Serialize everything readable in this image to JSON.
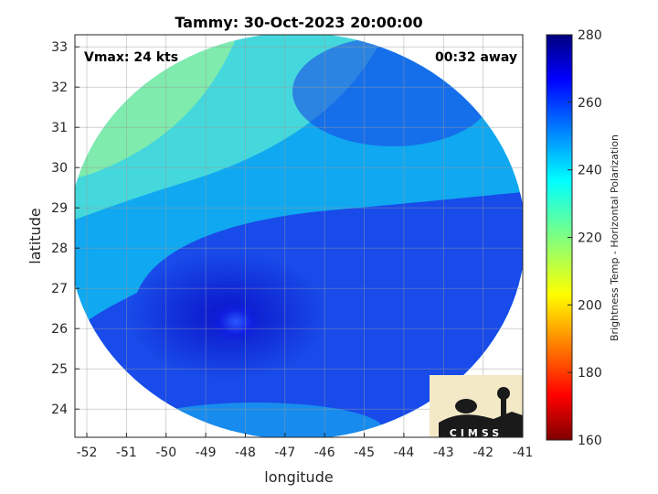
{
  "chart_data": {
    "type": "heatmap",
    "title": "Tammy: 30-Oct-2023 20:00:00",
    "xlabel": "longitude",
    "ylabel": "latitude",
    "xlim": [
      -52.3,
      -41
    ],
    "ylim": [
      23.3,
      33.3
    ],
    "x_ticks": [
      "-52",
      "-51",
      "-50",
      "-49",
      "-48",
      "-47",
      "-46",
      "-45",
      "-44",
      "-43",
      "-42",
      "-41"
    ],
    "y_ticks": [
      "24",
      "25",
      "26",
      "27",
      "28",
      "29",
      "30",
      "31",
      "32",
      "33"
    ],
    "grid": true,
    "colorbar": {
      "label": "Brightness Temp - Horizontal Polarization",
      "range": [
        160,
        280
      ],
      "ticks": [
        "280",
        "260",
        "240",
        "220",
        "200",
        "180",
        "160"
      ],
      "colormap": "jet"
    },
    "annotations": {
      "vmax": "Vmax: 24 kts",
      "away": "00:32 away"
    },
    "swath_center": [
      -46.7,
      28.3
    ],
    "storm_center": [
      -48.8,
      26.1
    ]
  },
  "logo": {
    "text": "CIMSS"
  }
}
